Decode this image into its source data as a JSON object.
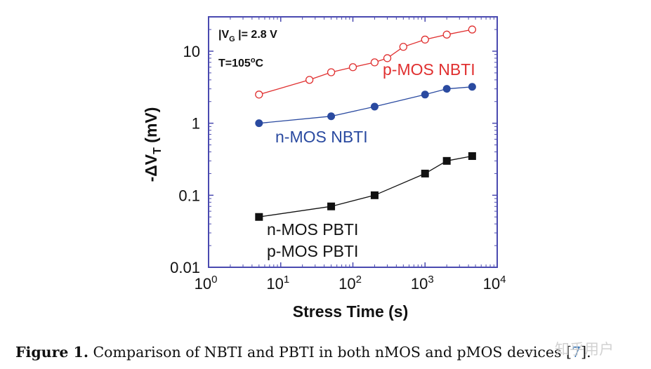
{
  "chart_data": {
    "type": "line",
    "xscale": "log",
    "yscale": "log",
    "xlim": [
      1,
      10000
    ],
    "ylim": [
      0.01,
      30
    ],
    "xlabel": "Stress Time (s)",
    "ylabel_prefix": "-ΔV",
    "ylabel_sub": "T",
    "ylabel_suffix": " (mV)",
    "x_ticks": [
      {
        "value": 1,
        "base": "10",
        "exp": "0"
      },
      {
        "value": 10,
        "base": "10",
        "exp": "1"
      },
      {
        "value": 100,
        "base": "10",
        "exp": "2"
      },
      {
        "value": 1000,
        "base": "10",
        "exp": "3"
      },
      {
        "value": 10000,
        "base": "10",
        "exp": "4"
      }
    ],
    "y_ticks": [
      {
        "value": 0.01,
        "label": "0.01"
      },
      {
        "value": 0.1,
        "label": "0.1"
      },
      {
        "value": 1,
        "label": "1"
      },
      {
        "value": 10,
        "label": "10"
      }
    ],
    "annotations": {
      "vg_prefix": "|V",
      "vg_sub": "G",
      "vg_suffix": " |= 2.8 V",
      "temp_prefix": "T=105",
      "temp_sup": "o",
      "temp_suffix": "C"
    },
    "series": [
      {
        "name": "p-MOS NBTI",
        "color": "#e03030",
        "marker": "open-circle",
        "x": [
          5,
          25,
          50,
          100,
          200,
          300,
          500,
          1000,
          2000,
          4500
        ],
        "values": [
          2.5,
          4.0,
          5.1,
          6.0,
          7.0,
          8.0,
          11.5,
          14.5,
          17.0,
          20.0
        ]
      },
      {
        "name": "n-MOS NBTI",
        "color": "#2a4aa0",
        "marker": "filled-circle",
        "x": [
          5,
          50,
          200,
          1000,
          2000,
          4500
        ],
        "values": [
          1.0,
          1.25,
          1.7,
          2.5,
          3.0,
          3.2
        ]
      },
      {
        "name": "n-MOS PBTI",
        "color": "#111111",
        "marker": "filled-square",
        "x": [
          5,
          50,
          200,
          1000,
          2000,
          4500
        ],
        "values": [
          0.05,
          0.07,
          0.1,
          0.2,
          0.3,
          0.35
        ]
      }
    ],
    "extra_label": "p-MOS PBTI"
  },
  "caption": {
    "label": "Figure 1.",
    "text": " Comparison of NBTI and PBTI in both nMOS and pMOS devices [",
    "ref": "7",
    "end": "]."
  },
  "watermark": "知乎用户"
}
